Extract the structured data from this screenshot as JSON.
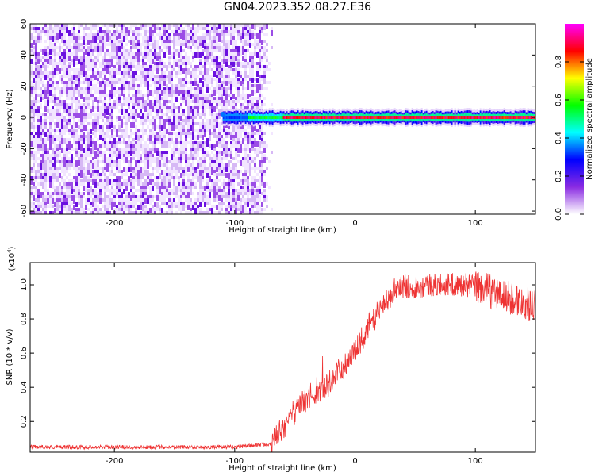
{
  "title": "GN04.2023.352.08.27.E36",
  "colors": {
    "background": "#ffffff",
    "snr_line": "#ee3333",
    "axis": "#000000"
  },
  "chart_data": [
    {
      "type": "heatmap",
      "panel": "spectrogram",
      "xlabel": "Height of straight line (km)",
      "ylabel": "Frequency (Hz)",
      "xlim": [
        -270,
        150
      ],
      "ylim": [
        -62,
        60
      ],
      "xticks": [
        -200,
        -100,
        0,
        100
      ],
      "xtick_labels": [
        "-200",
        "-100",
        "0",
        "100"
      ],
      "yticks": [
        60,
        40,
        20,
        0,
        -20,
        -40,
        -60
      ],
      "ytick_labels": [
        "60",
        "40",
        "20",
        "0",
        "-20",
        "-40",
        "-60"
      ],
      "noise_region_x": [
        -270,
        -80
      ],
      "signal_onset_x": -110,
      "signal_frequency_hz": 0,
      "colorbar": {
        "label": "Normalized spectral amplitude",
        "range": [
          0,
          1
        ],
        "ticks": [
          0.0,
          0.2,
          0.4,
          0.6,
          0.8
        ],
        "tick_labels": [
          "0.0",
          "0.2",
          "0.4",
          "0.6",
          "0.8"
        ],
        "stops": [
          "#ffffff",
          "#8a2be2",
          "#0000ff",
          "#00ffff",
          "#00ff00",
          "#ffff00",
          "#ff0000",
          "#ff00ff"
        ]
      }
    },
    {
      "type": "line",
      "panel": "snr",
      "xlabel": "Height of straight line (km)",
      "ylabel": "SNR (10 * v/v)",
      "scale_label": "(x10",
      "scale_exponent": "4",
      "scale_suffix": ")",
      "xlim": [
        -270,
        150
      ],
      "ylim": [
        0.02,
        1.13
      ],
      "xticks": [
        -200,
        -100,
        0,
        100
      ],
      "xtick_labels": [
        "-200",
        "-100",
        "0",
        "100"
      ],
      "yticks": [
        0.2,
        0.4,
        0.6,
        0.8,
        1.0
      ],
      "ytick_labels": [
        "0.2",
        "0.4",
        "0.6",
        "0.8",
        "1.0"
      ],
      "trend": {
        "x": [
          -270,
          -200,
          -100,
          -70,
          -60,
          -50,
          -40,
          -30,
          -20,
          -10,
          0,
          10,
          20,
          30,
          40,
          50,
          60,
          70,
          80,
          90,
          100,
          110,
          120,
          130,
          140,
          150
        ],
        "y": [
          0.05,
          0.05,
          0.05,
          0.07,
          0.15,
          0.25,
          0.33,
          0.38,
          0.43,
          0.52,
          0.62,
          0.74,
          0.85,
          0.96,
          0.99,
          0.99,
          1.0,
          1.0,
          1.0,
          1.0,
          0.99,
          0.97,
          0.94,
          0.92,
          0.9,
          0.88
        ]
      }
    }
  ]
}
